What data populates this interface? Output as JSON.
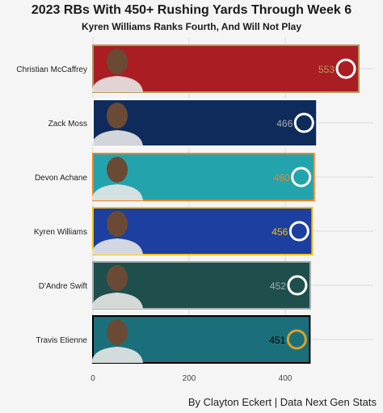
{
  "chart_data": {
    "type": "bar",
    "orientation": "horizontal",
    "title": "2023 RBs With 450+ Rushing Yards Through Week 6",
    "subtitle": "Kyren Williams Ranks Fourth, And Will Not Play",
    "xlabel": "",
    "ylabel": "",
    "xlim": [
      0,
      600
    ],
    "xticks": [
      0,
      200,
      400
    ],
    "grid": true,
    "categories": [
      "Christian McCaffrey",
      "Zack Moss",
      "Devon Achane",
      "Kyren Williams",
      "D'Andre Swift",
      "Travis Etienne"
    ],
    "values": [
      553,
      466,
      460,
      456,
      452,
      451
    ],
    "value_labels": [
      "553",
      "466",
      "460",
      "456",
      "452",
      "451"
    ],
    "bar_colors": [
      "#aa1e23",
      "#0f2b5b",
      "#23a4ad",
      "#1c3fa0",
      "#1e4f4d",
      "#1b6f7a"
    ],
    "bar_borders": [
      "#b3995d",
      "#ffffff",
      "#f58220",
      "#f5c200",
      "#a5acaf",
      "#000000"
    ],
    "label_colors": [
      "#b3995d",
      "#a5acaf",
      "#f58220",
      "#f5c200",
      "#a5acaf",
      "#000000"
    ],
    "team_icons": [
      "49ers-logo-icon",
      "colts-horseshoe-icon",
      "dolphins-logo-icon",
      "rams-logo-icon",
      "eagles-logo-icon",
      "jaguars-logo-icon"
    ],
    "player_icons": [
      "player-headshot-icon",
      "player-headshot-icon",
      "player-headshot-icon",
      "player-headshot-icon",
      "player-headshot-icon",
      "player-headshot-icon"
    ]
  },
  "footer": {
    "credit": "By Clayton Eckert | Data Next Gen Stats"
  }
}
